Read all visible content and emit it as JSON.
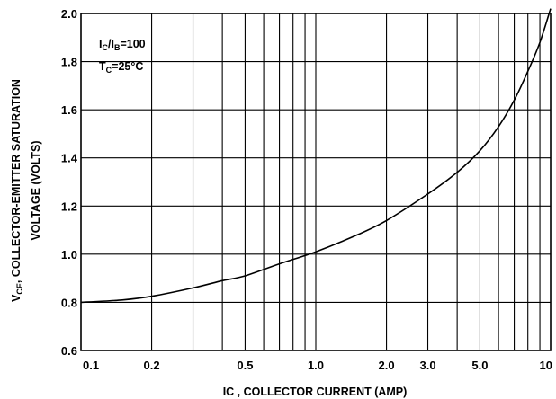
{
  "chart_data": {
    "type": "line",
    "x_scale": "log",
    "grid": true,
    "xlim": [
      0.1,
      10
    ],
    "ylim": [
      0.6,
      2.0
    ],
    "xlabel": "IC , COLLECTOR CURRENT (AMP)",
    "ylabel_line1_main": "V",
    "ylabel_line1_sub": "CE",
    "ylabel_line1_rest": ", COLLECTOR-EMITTER SATURATION",
    "ylabel_line2": "VOLTAGE (VOLTS)",
    "x_tick_labels": [
      {
        "value": 0.1,
        "label": "0.1"
      },
      {
        "value": 0.2,
        "label": "0.2"
      },
      {
        "value": 0.5,
        "label": "0.5"
      },
      {
        "value": 1.0,
        "label": "1.0"
      },
      {
        "value": 2.0,
        "label": "2.0"
      },
      {
        "value": 3.0,
        "label": "3.0"
      },
      {
        "value": 5.0,
        "label": "5.0"
      },
      {
        "value": 10,
        "label": "10"
      }
    ],
    "x_gridlines": [
      0.2,
      0.3,
      0.4,
      0.5,
      0.6,
      0.7,
      0.8,
      0.9,
      1,
      2,
      3,
      4,
      5,
      6,
      7,
      8,
      9
    ],
    "y_ticks": [
      {
        "value": 0.6,
        "label": "0.6"
      },
      {
        "value": 0.8,
        "label": "0.8"
      },
      {
        "value": 1.0,
        "label": "1.0"
      },
      {
        "value": 1.2,
        "label": "1.2"
      },
      {
        "value": 1.4,
        "label": "1.4"
      },
      {
        "value": 1.6,
        "label": "1.6"
      },
      {
        "value": 1.8,
        "label": "1.8"
      },
      {
        "value": 2.0,
        "label": "2.0"
      }
    ],
    "annotations": {
      "ratio": {
        "a": "I",
        "a_sub": "C",
        "sep": "/I",
        "b_sub": "B",
        "rest": "=100"
      },
      "temp": {
        "a": "T",
        "a_sub": "C",
        "rest": "=25°C"
      }
    },
    "series": [
      {
        "x": [
          0.1,
          0.15,
          0.2,
          0.3,
          0.4,
          0.5,
          0.7,
          1.0,
          1.5,
          2.0,
          3.0,
          4.0,
          5.0,
          6.0,
          7.0,
          8.0,
          9.0,
          10.0
        ],
        "y": [
          0.8,
          0.81,
          0.825,
          0.86,
          0.89,
          0.91,
          0.96,
          1.01,
          1.08,
          1.14,
          1.25,
          1.34,
          1.43,
          1.53,
          1.64,
          1.76,
          1.88,
          2.02
        ],
        "color": "#000000"
      }
    ]
  }
}
